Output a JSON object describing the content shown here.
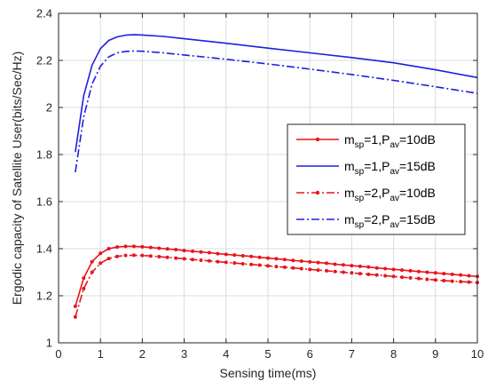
{
  "chart_data": {
    "type": "line",
    "title": "",
    "xlabel": "Sensing time(ms)",
    "ylabel": "Ergodic capacity of Satellite User(bits/Sec/Hz)",
    "xlim": [
      0,
      10
    ],
    "ylim": [
      1,
      2.4
    ],
    "xticks": [
      "0",
      "1",
      "2",
      "3",
      "4",
      "5",
      "6",
      "7",
      "8",
      "9",
      "10"
    ],
    "yticks": [
      "1",
      "1.2",
      "1.4",
      "1.6",
      "1.8",
      "2",
      "2.2",
      "2.4"
    ],
    "grid": true,
    "legend_position": "right",
    "series": [
      {
        "legend": {
          "m": "m",
          "msub": "sp",
          "eq1": "=1,",
          "p": "P",
          "psub": "av",
          "eq2": "=10dB"
        },
        "color": "#e8141c",
        "dash": "solid",
        "marker": "dot",
        "x": [
          0.4,
          0.6,
          0.8,
          1.0,
          1.2,
          1.4,
          1.6,
          1.8,
          2.0,
          2.2,
          2.4,
          2.6,
          2.8,
          3.0,
          3.2,
          3.4,
          3.6,
          3.8,
          4.0,
          4.2,
          4.4,
          4.6,
          4.8,
          5.0,
          5.2,
          5.4,
          5.6,
          5.8,
          6.0,
          6.2,
          6.4,
          6.6,
          6.8,
          7.0,
          7.2,
          7.4,
          7.6,
          7.8,
          8.0,
          8.2,
          8.4,
          8.6,
          8.8,
          9.0,
          9.2,
          9.4,
          9.6,
          9.8,
          10.0
        ],
        "y": [
          1.155,
          1.275,
          1.345,
          1.38,
          1.4,
          1.407,
          1.41,
          1.41,
          1.408,
          1.405,
          1.402,
          1.399,
          1.396,
          1.392,
          1.389,
          1.386,
          1.383,
          1.379,
          1.376,
          1.373,
          1.37,
          1.367,
          1.363,
          1.36,
          1.357,
          1.354,
          1.35,
          1.347,
          1.344,
          1.341,
          1.338,
          1.334,
          1.331,
          1.328,
          1.325,
          1.322,
          1.318,
          1.315,
          1.312,
          1.309,
          1.306,
          1.303,
          1.3,
          1.297,
          1.294,
          1.291,
          1.288,
          1.285,
          1.282
        ]
      },
      {
        "legend": {
          "m": "m",
          "msub": "sp",
          "eq1": "=1,",
          "p": "P",
          "psub": "av",
          "eq2": "=15dB"
        },
        "color": "#1f1fe0",
        "dash": "solid",
        "marker": "none",
        "x": [
          0.4,
          0.6,
          0.8,
          1.0,
          1.2,
          1.4,
          1.6,
          1.8,
          2.0,
          2.5,
          3.0,
          4.0,
          5.0,
          6.0,
          7.0,
          8.0,
          9.0,
          10.0
        ],
        "y": [
          1.81,
          2.05,
          2.18,
          2.25,
          2.285,
          2.3,
          2.307,
          2.309,
          2.308,
          2.302,
          2.292,
          2.273,
          2.252,
          2.232,
          2.212,
          2.19,
          2.16,
          2.127
        ]
      },
      {
        "legend": {
          "m": "m",
          "msub": "sp",
          "eq1": "=2,",
          "p": "P",
          "psub": "av",
          "eq2": "=10dB"
        },
        "color": "#e8141c",
        "dash": "dashdot",
        "marker": "dot",
        "x": [
          0.4,
          0.6,
          0.8,
          1.0,
          1.2,
          1.4,
          1.6,
          1.8,
          2.0,
          2.2,
          2.4,
          2.6,
          2.8,
          3.0,
          3.2,
          3.4,
          3.6,
          3.8,
          4.0,
          4.2,
          4.4,
          4.6,
          4.8,
          5.0,
          5.2,
          5.4,
          5.6,
          5.8,
          6.0,
          6.2,
          6.4,
          6.6,
          6.8,
          7.0,
          7.2,
          7.4,
          7.6,
          7.8,
          8.0,
          8.2,
          8.4,
          8.6,
          8.8,
          9.0,
          9.2,
          9.4,
          9.6,
          9.8,
          10.0
        ],
        "y": [
          1.11,
          1.23,
          1.3,
          1.338,
          1.358,
          1.367,
          1.371,
          1.372,
          1.371,
          1.369,
          1.366,
          1.363,
          1.36,
          1.357,
          1.354,
          1.351,
          1.348,
          1.345,
          1.342,
          1.339,
          1.336,
          1.333,
          1.33,
          1.327,
          1.324,
          1.321,
          1.318,
          1.315,
          1.312,
          1.309,
          1.306,
          1.303,
          1.3,
          1.297,
          1.294,
          1.291,
          1.288,
          1.285,
          1.282,
          1.279,
          1.276,
          1.273,
          1.27,
          1.267,
          1.264,
          1.262,
          1.26,
          1.258,
          1.256
        ]
      },
      {
        "legend": {
          "m": "m",
          "msub": "sp",
          "eq1": "=2,",
          "p": "P",
          "psub": "av",
          "eq2": "=15dB"
        },
        "color": "#1f1fe0",
        "dash": "dashdot",
        "marker": "none",
        "x": [
          0.4,
          0.6,
          0.8,
          1.0,
          1.2,
          1.4,
          1.6,
          1.8,
          2.0,
          2.5,
          3.0,
          4.0,
          5.0,
          6.0,
          7.0,
          8.0,
          9.0,
          10.0
        ],
        "y": [
          1.725,
          1.96,
          2.1,
          2.175,
          2.215,
          2.232,
          2.238,
          2.24,
          2.239,
          2.232,
          2.223,
          2.205,
          2.185,
          2.163,
          2.14,
          2.115,
          2.088,
          2.06
        ]
      }
    ]
  }
}
